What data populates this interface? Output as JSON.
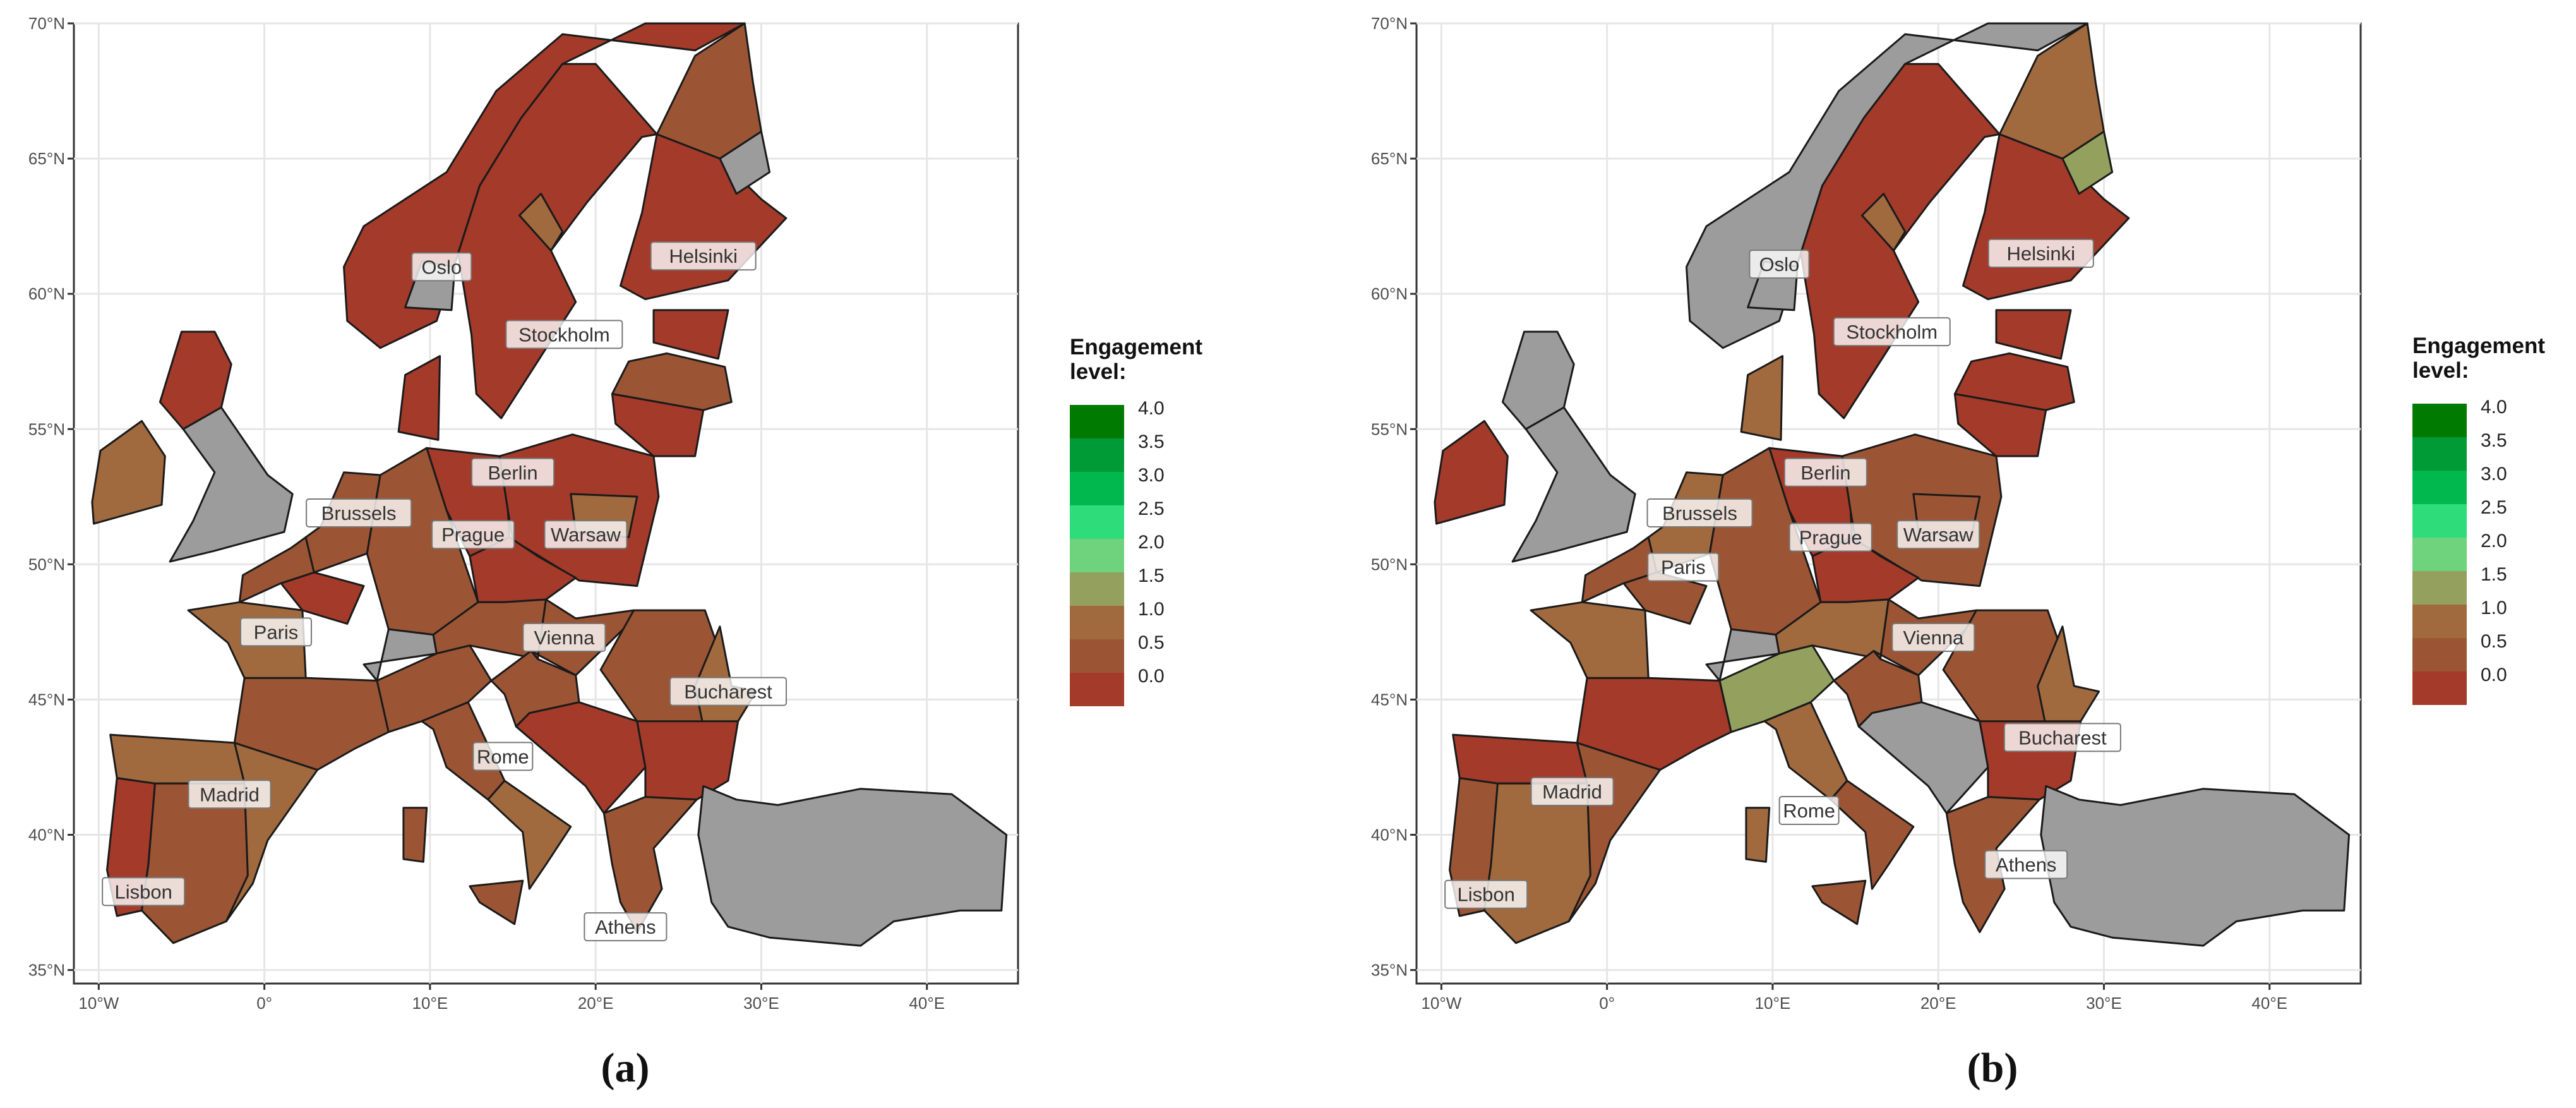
{
  "panels": [
    {
      "id": "a",
      "caption": "(a)",
      "regions": [
        {
          "name": "Ireland",
          "level": 1.2
        },
        {
          "name": "Scotland",
          "level": 0.2
        },
        {
          "name": "England",
          "level": null
        },
        {
          "name": "Portugal",
          "level": 0.3
        },
        {
          "name": "NW Spain",
          "level": 1.2
        },
        {
          "name": "Central Spain",
          "level": 0.7
        },
        {
          "name": "East Spain",
          "level": 1.2
        },
        {
          "name": "South France",
          "level": 0.7
        },
        {
          "name": "West France",
          "level": 1.2
        },
        {
          "name": "Paris region",
          "level": 0.2
        },
        {
          "name": "North France",
          "level": 0.6
        },
        {
          "name": "Benelux",
          "level": 0.7
        },
        {
          "name": "West Germany",
          "level": 0.6
        },
        {
          "name": "East Germany",
          "level": 0.2
        },
        {
          "name": "Switzerland",
          "level": null
        },
        {
          "name": "Denmark",
          "level": 0.2
        },
        {
          "name": "Norway",
          "level": 0.2
        },
        {
          "name": "Oslo area",
          "level": null
        },
        {
          "name": "Sweden",
          "level": 0.2
        },
        {
          "name": "Central Sweden",
          "level": 1.2
        },
        {
          "name": "North Finland",
          "level": 0.6
        },
        {
          "name": "South Finland",
          "level": 0.2
        },
        {
          "name": "Lapland",
          "level": null
        },
        {
          "name": "Estonia",
          "level": 0.2
        },
        {
          "name": "Latvia",
          "level": 0.7
        },
        {
          "name": "Lithuania",
          "level": 0.2
        },
        {
          "name": "Poland",
          "level": 0.2
        },
        {
          "name": "East Poland",
          "level": 1.1
        },
        {
          "name": "Czechia",
          "level": 0.2
        },
        {
          "name": "Austria",
          "level": 0.7
        },
        {
          "name": "Hungary",
          "level": 0.6
        },
        {
          "name": "Italy North",
          "level": 0.6
        },
        {
          "name": "Italy Central",
          "level": 0.6
        },
        {
          "name": "Italy South",
          "level": 1.2
        },
        {
          "name": "Sicily",
          "level": 0.6
        },
        {
          "name": "Sardinia",
          "level": 0.6
        },
        {
          "name": "Croatia",
          "level": 0.7
        },
        {
          "name": "Balkans",
          "level": 0.2
        },
        {
          "name": "Romania",
          "level": 0.7
        },
        {
          "name": "Romania East",
          "level": 1.2
        },
        {
          "name": "Bulgaria",
          "level": 0.2
        },
        {
          "name": "Greece",
          "level": 0.6
        },
        {
          "name": "Turkey",
          "level": null
        }
      ],
      "cities": [
        {
          "name": "Oslo",
          "lon": 10.7,
          "lat": 61.0
        },
        {
          "name": "Stockholm",
          "lon": 18.1,
          "lat": 58.5
        },
        {
          "name": "Helsinki",
          "lon": 26.5,
          "lat": 61.4
        },
        {
          "name": "Berlin",
          "lon": 15.0,
          "lat": 53.4
        },
        {
          "name": "Brussels",
          "lon": 5.7,
          "lat": 51.9
        },
        {
          "name": "Prague",
          "lon": 12.6,
          "lat": 51.1
        },
        {
          "name": "Warsaw",
          "lon": 19.4,
          "lat": 51.1
        },
        {
          "name": "Paris",
          "lon": 0.7,
          "lat": 47.5
        },
        {
          "name": "Vienna",
          "lon": 18.1,
          "lat": 47.3
        },
        {
          "name": "Bucharest",
          "lon": 28.0,
          "lat": 45.3
        },
        {
          "name": "Rome",
          "lon": 14.4,
          "lat": 42.9
        },
        {
          "name": "Madrid",
          "lon": -2.1,
          "lat": 41.5
        },
        {
          "name": "Lisbon",
          "lon": -7.3,
          "lat": 37.9
        },
        {
          "name": "Athens",
          "lon": 21.8,
          "lat": 36.6
        }
      ]
    },
    {
      "id": "b",
      "caption": "(b)",
      "regions": [
        {
          "name": "Ireland",
          "level": 0.2
        },
        {
          "name": "Scotland",
          "level": null
        },
        {
          "name": "England",
          "level": null
        },
        {
          "name": "Portugal",
          "level": 0.7
        },
        {
          "name": "NW Spain",
          "level": 0.2
        },
        {
          "name": "Central Spain",
          "level": 1.2
        },
        {
          "name": "East Spain",
          "level": 0.6
        },
        {
          "name": "South France",
          "level": 0.2
        },
        {
          "name": "West France",
          "level": 1.2
        },
        {
          "name": "Paris region",
          "level": 0.7
        },
        {
          "name": "North France",
          "level": 0.6
        },
        {
          "name": "Benelux",
          "level": 1.2
        },
        {
          "name": "West Germany",
          "level": 0.7
        },
        {
          "name": "East Germany",
          "level": 0.2
        },
        {
          "name": "Switzerland",
          "level": null
        },
        {
          "name": "Denmark",
          "level": 1.2
        },
        {
          "name": "Norway",
          "level": null
        },
        {
          "name": "Oslo area",
          "level": null
        },
        {
          "name": "Sweden",
          "level": 0.2
        },
        {
          "name": "Central Sweden",
          "level": 1.2
        },
        {
          "name": "North Finland",
          "level": 1.3
        },
        {
          "name": "South Finland",
          "level": 0.2
        },
        {
          "name": "Lapland",
          "level": 1.8
        },
        {
          "name": "Estonia",
          "level": 0.2
        },
        {
          "name": "Latvia",
          "level": 0.2
        },
        {
          "name": "Lithuania",
          "level": 0.2
        },
        {
          "name": "Poland",
          "level": 0.6
        },
        {
          "name": "East Poland",
          "level": 0.7
        },
        {
          "name": "Czechia",
          "level": 0.2
        },
        {
          "name": "Austria",
          "level": 1.2
        },
        {
          "name": "Hungary",
          "level": 0.6
        },
        {
          "name": "Italy North",
          "level": 1.8
        },
        {
          "name": "Italy Central",
          "level": 1.2
        },
        {
          "name": "Italy South",
          "level": 0.6
        },
        {
          "name": "Sicily",
          "level": 0.6
        },
        {
          "name": "Sardinia",
          "level": 1.2
        },
        {
          "name": "Croatia",
          "level": 0.7
        },
        {
          "name": "Balkans",
          "level": null
        },
        {
          "name": "Romania",
          "level": 0.7
        },
        {
          "name": "Romania East",
          "level": 1.2
        },
        {
          "name": "Bulgaria",
          "level": 0.2
        },
        {
          "name": "Greece",
          "level": 0.6
        },
        {
          "name": "Turkey",
          "level": null
        }
      ],
      "cities": [
        {
          "name": "Oslo",
          "lon": 10.4,
          "lat": 61.1
        },
        {
          "name": "Stockholm",
          "lon": 17.2,
          "lat": 58.6
        },
        {
          "name": "Helsinki",
          "lon": 26.2,
          "lat": 61.5
        },
        {
          "name": "Berlin",
          "lon": 13.2,
          "lat": 53.4
        },
        {
          "name": "Brussels",
          "lon": 5.6,
          "lat": 51.9
        },
        {
          "name": "Prague",
          "lon": 13.5,
          "lat": 51.0
        },
        {
          "name": "Warsaw",
          "lon": 20.0,
          "lat": 51.1
        },
        {
          "name": "Paris",
          "lon": 4.6,
          "lat": 49.9
        },
        {
          "name": "Vienna",
          "lon": 19.7,
          "lat": 47.3
        },
        {
          "name": "Bucharest",
          "lon": 27.5,
          "lat": 43.6
        },
        {
          "name": "Rome",
          "lon": 12.2,
          "lat": 40.9
        },
        {
          "name": "Madrid",
          "lon": -2.1,
          "lat": 41.6
        },
        {
          "name": "Lisbon",
          "lon": -7.3,
          "lat": 37.8
        },
        {
          "name": "Athens",
          "lon": 25.3,
          "lat": 38.9
        }
      ]
    }
  ],
  "axes": {
    "lon_ticks": [
      "10°W",
      "0°",
      "10°E",
      "20°E",
      "30°E",
      "40°E"
    ],
    "lat_ticks": [
      "70°N",
      "65°N",
      "60°N",
      "55°N",
      "50°N",
      "45°N",
      "40°N",
      "35°N"
    ]
  },
  "legend": {
    "title_line1": "Engagement",
    "title_line2": "level:",
    "values": [
      "4.0",
      "3.5",
      "3.0",
      "2.5",
      "2.0",
      "1.5",
      "1.0",
      "0.5",
      "0.0"
    ],
    "colors": [
      "#007a00",
      "#009a36",
      "#00b84e",
      "#2fdc7a",
      "#6fd27c",
      "#94a15e",
      "#a06a3e",
      "#9c5534",
      "#a33a2a"
    ],
    "na_color": "#9c9c9c"
  }
}
